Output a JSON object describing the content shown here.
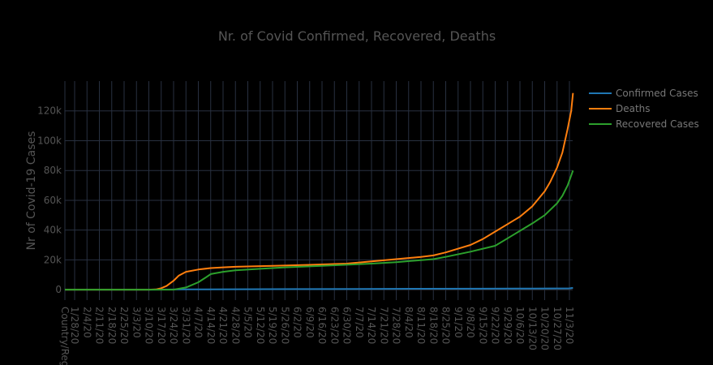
{
  "chart_data": {
    "type": "line",
    "title": "Nr. of Covid Confirmed, Recovered, Deaths",
    "xlabel": "",
    "ylabel": "Nr of Covid-19 Cases",
    "x_first_tick": "Country/Region",
    "x_ticks": [
      "1/28/20",
      "2/4/20",
      "2/11/20",
      "2/18/20",
      "2/25/20",
      "3/3/20",
      "3/10/20",
      "3/17/20",
      "3/24/20",
      "3/31/20",
      "4/7/20",
      "4/14/20",
      "4/21/20",
      "4/28/20",
      "5/5/20",
      "5/12/20",
      "5/19/20",
      "5/26/20",
      "6/2/20",
      "6/9/20",
      "6/16/20",
      "6/23/20",
      "6/30/20",
      "7/7/20",
      "7/14/20",
      "7/21/20",
      "7/28/20",
      "8/4/20",
      "8/11/20",
      "8/18/20",
      "8/25/20",
      "9/1/20",
      "9/8/20",
      "9/15/20",
      "9/22/20",
      "9/29/20",
      "10/6/20",
      "10/13/20",
      "10/20/20",
      "10/27/20",
      "11/3/20"
    ],
    "y_ticks": [
      "0",
      "20k",
      "40k",
      "60k",
      "80k",
      "100k",
      "120k"
    ],
    "ylim": [
      -7000,
      140000
    ],
    "grid": true,
    "legend_position": "top-right",
    "series": [
      {
        "name": "Confirmed Cases",
        "color": "#1f77b4",
        "points": [
          [
            "Country/Region",
            0
          ],
          [
            "1/28/20",
            0
          ],
          [
            "3/10/20",
            0
          ],
          [
            "3/31/20",
            200
          ],
          [
            "4/28/20",
            300
          ],
          [
            "6/2/20",
            400
          ],
          [
            "7/7/20",
            500
          ],
          [
            "8/11/20",
            600
          ],
          [
            "9/15/20",
            700
          ],
          [
            "10/13/20",
            800
          ],
          [
            "11/3/20",
            900
          ],
          [
            "11/5/20",
            1200
          ]
        ]
      },
      {
        "name": "Deaths",
        "color": "#ff7f0e",
        "points": [
          [
            "Country/Region",
            0
          ],
          [
            "3/10/20",
            0
          ],
          [
            "3/14/20",
            200
          ],
          [
            "3/17/20",
            1000
          ],
          [
            "3/20/20",
            2500
          ],
          [
            "3/24/20",
            6000
          ],
          [
            "3/27/20",
            9500
          ],
          [
            "3/31/20",
            12000
          ],
          [
            "4/7/20",
            13500
          ],
          [
            "4/14/20",
            14500
          ],
          [
            "4/21/20",
            15000
          ],
          [
            "4/28/20",
            15400
          ],
          [
            "5/19/20",
            16000
          ],
          [
            "6/9/20",
            16700
          ],
          [
            "6/30/20",
            17500
          ],
          [
            "7/14/20",
            19000
          ],
          [
            "7/28/20",
            20500
          ],
          [
            "8/11/20",
            22000
          ],
          [
            "8/18/20",
            23000
          ],
          [
            "8/25/20",
            25000
          ],
          [
            "9/1/20",
            27500
          ],
          [
            "9/8/20",
            30000
          ],
          [
            "9/15/20",
            34000
          ],
          [
            "9/22/20",
            39000
          ],
          [
            "9/29/20",
            44000
          ],
          [
            "10/6/20",
            49000
          ],
          [
            "10/13/20",
            56000
          ],
          [
            "10/20/20",
            66000
          ],
          [
            "10/23/20",
            72000
          ],
          [
            "10/27/20",
            82000
          ],
          [
            "10/30/20",
            92000
          ],
          [
            "11/2/20",
            108000
          ],
          [
            "11/4/20",
            120000
          ],
          [
            "11/5/20",
            132000
          ]
        ]
      },
      {
        "name": "Recovered Cases",
        "color": "#2ca02c",
        "points": [
          [
            "Country/Region",
            0
          ],
          [
            "3/24/20",
            0
          ],
          [
            "3/31/20",
            1500
          ],
          [
            "4/7/20",
            5000
          ],
          [
            "4/11/20",
            8000
          ],
          [
            "4/14/20",
            10500
          ],
          [
            "4/21/20",
            12000
          ],
          [
            "4/28/20",
            13000
          ],
          [
            "5/12/20",
            14000
          ],
          [
            "5/26/20",
            15000
          ],
          [
            "6/16/20",
            16000
          ],
          [
            "7/14/20",
            17500
          ],
          [
            "7/28/20",
            18500
          ],
          [
            "8/18/20",
            20500
          ],
          [
            "8/25/20",
            22000
          ],
          [
            "9/8/20",
            25500
          ],
          [
            "9/22/20",
            29500
          ],
          [
            "9/29/20",
            34500
          ],
          [
            "10/6/20",
            39500
          ],
          [
            "10/13/20",
            44500
          ],
          [
            "10/20/20",
            50000
          ],
          [
            "10/27/20",
            58000
          ],
          [
            "10/30/20",
            63000
          ],
          [
            "11/2/20",
            70000
          ],
          [
            "11/5/20",
            80000
          ]
        ]
      }
    ]
  }
}
